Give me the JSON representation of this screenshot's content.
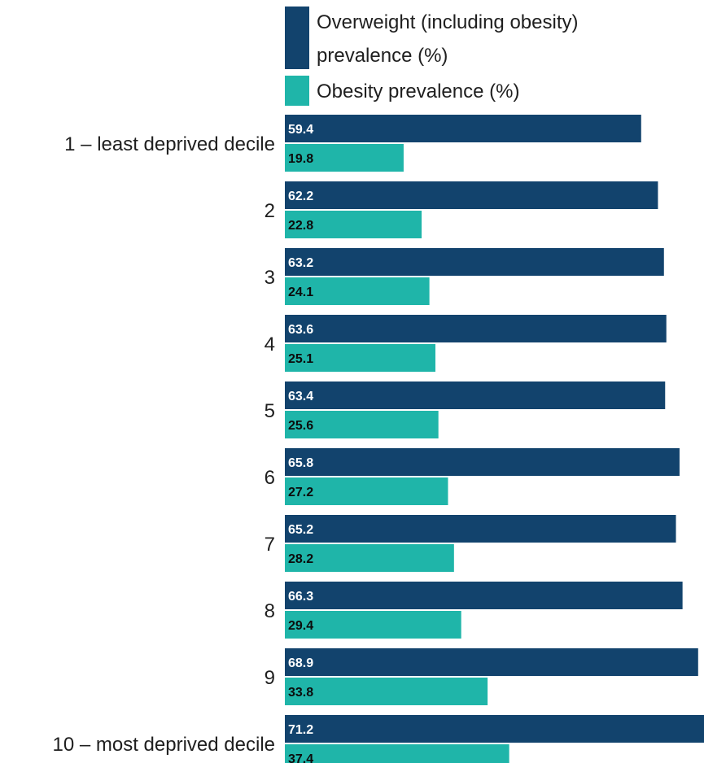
{
  "chart_data": {
    "type": "bar",
    "orientation": "horizontal",
    "categories": [
      "1 – least deprived decile",
      "2",
      "3",
      "4",
      "5",
      "6",
      "7",
      "8",
      "9",
      "10 – most deprived decile"
    ],
    "series": [
      {
        "name": "Overweight (including obesity) prevalence (%)",
        "color": "#12436d",
        "label_color": "#ffffff",
        "values": [
          59.4,
          62.2,
          63.2,
          63.6,
          63.4,
          65.8,
          65.2,
          66.3,
          68.9,
          71.2
        ]
      },
      {
        "name": "Obesity prevalence (%)",
        "color": "#1fb5a9",
        "label_color": "#0b0c0c",
        "values": [
          19.8,
          22.8,
          24.1,
          25.1,
          25.6,
          27.2,
          28.2,
          29.4,
          33.8,
          37.4
        ]
      }
    ],
    "title": "",
    "xlabel": "",
    "ylabel": "",
    "xlim": [
      0,
      70
    ],
    "grid": false,
    "legend_position": "top"
  }
}
